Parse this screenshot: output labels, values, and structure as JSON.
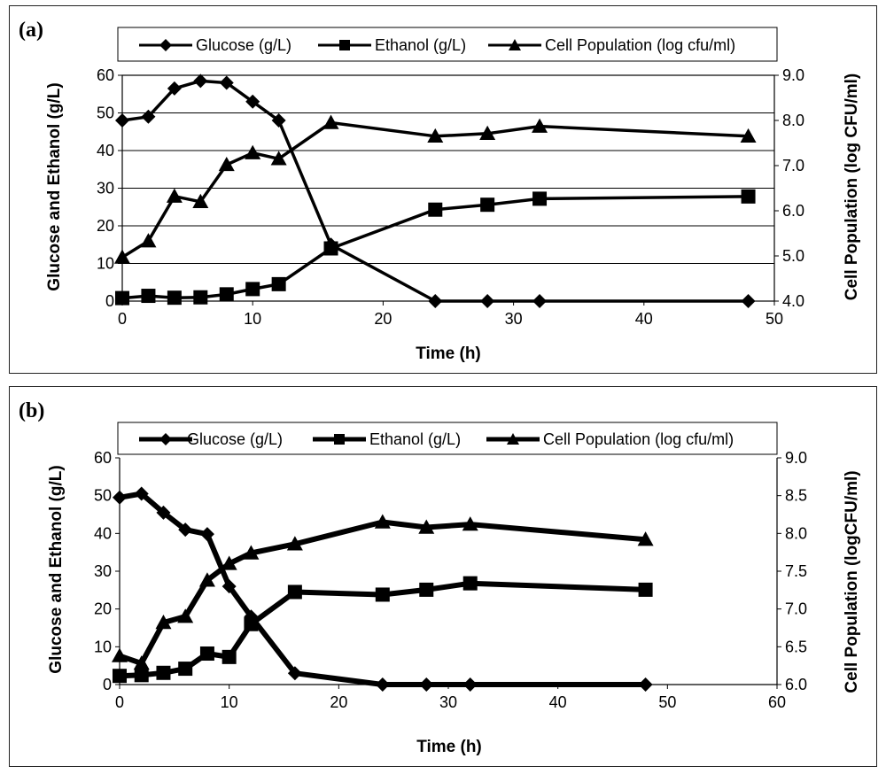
{
  "chart_data": [
    {
      "panel_label": "(a)",
      "type": "line",
      "legend": {
        "position": "top",
        "items": [
          "Glucose (g/L)",
          "Ethanol (g/L)",
          "Cell Population (log cfu/ml)"
        ]
      },
      "xlabel": "Time (h)",
      "ylabel_left": "Glucose and Ethanol (g/L)",
      "ylabel_right": "Cell Population (log CFU/ml)",
      "xlim": [
        0,
        50
      ],
      "x_ticks": [
        0,
        10,
        20,
        30,
        40,
        50
      ],
      "x_tick_labels": [
        "0",
        "10",
        "20",
        "30",
        "40",
        "50"
      ],
      "ylim_left": [
        0,
        60
      ],
      "y_left_ticks": [
        0,
        10,
        20,
        30,
        40,
        50,
        60
      ],
      "y_left_tick_labels": [
        "0",
        "10",
        "20",
        "30",
        "40",
        "50",
        "60"
      ],
      "ylim_right": [
        4,
        9
      ],
      "y_right_ticks": [
        4,
        5,
        6,
        7,
        8,
        9
      ],
      "y_right_tick_labels": [
        "4.0",
        "5.0",
        "6.0",
        "7.0",
        "8.0",
        "9.0"
      ],
      "grid": "horizontal",
      "series": [
        {
          "name": "Glucose (g/L)",
          "marker": "diamond",
          "axis": "left",
          "x": [
            0,
            2,
            4,
            6,
            8,
            10,
            12,
            16,
            24,
            28,
            32,
            48
          ],
          "values": [
            48,
            49,
            56.5,
            58.5,
            58,
            53,
            48,
            15,
            0,
            0,
            0,
            0
          ]
        },
        {
          "name": "Ethanol (g/L)",
          "marker": "square",
          "axis": "left",
          "x": [
            0,
            2,
            4,
            6,
            8,
            10,
            12,
            16,
            24,
            28,
            32,
            48
          ],
          "values": [
            0.8,
            1.4,
            0.9,
            1.0,
            1.8,
            3.2,
            4.5,
            14,
            24.3,
            25.6,
            27.2,
            27.8
          ]
        },
        {
          "name": "Cell Population (log cfu/ml)",
          "marker": "triangle",
          "axis": "right",
          "x": [
            0,
            2,
            4,
            6,
            8,
            10,
            12,
            16,
            24,
            28,
            32,
            48
          ],
          "values": [
            4.97,
            5.33,
            6.32,
            6.2,
            7.02,
            7.28,
            7.15,
            7.95,
            7.65,
            7.71,
            7.87,
            7.65
          ]
        }
      ]
    },
    {
      "panel_label": "(b)",
      "type": "line",
      "legend": {
        "position": "top",
        "items": [
          "Glucose (g/L)",
          "Ethanol (g/L)",
          "Cell Population (log cfu/ml)"
        ]
      },
      "xlabel": "Time (h)",
      "ylabel_left": "Glucose and Ethanol (g/L)",
      "ylabel_right": "Cell Population (logCFU/ml)",
      "xlim": [
        0,
        60
      ],
      "x_ticks": [
        0,
        10,
        20,
        30,
        40,
        50,
        60
      ],
      "x_tick_labels": [
        "0",
        "10",
        "20",
        "30",
        "40",
        "50",
        "60"
      ],
      "ylim_left": [
        0,
        60
      ],
      "y_left_ticks": [
        0,
        10,
        20,
        30,
        40,
        50,
        60
      ],
      "y_left_tick_labels": [
        "0",
        "10",
        "20",
        "30",
        "40",
        "50",
        "60"
      ],
      "ylim_right": [
        6,
        9
      ],
      "y_right_ticks": [
        6,
        6.5,
        7,
        7.5,
        8,
        8.5,
        9
      ],
      "y_right_tick_labels": [
        "6.0",
        "6.5",
        "7.0",
        "7.5",
        "8.0",
        "8.5",
        "9.0"
      ],
      "grid": "none",
      "series": [
        {
          "name": "Glucose (g/L)",
          "marker": "diamond",
          "axis": "left",
          "x": [
            0,
            2,
            4,
            6,
            8,
            10,
            12,
            16,
            24,
            28,
            32,
            48
          ],
          "values": [
            49.5,
            50.5,
            45.5,
            41,
            39.8,
            26,
            18,
            3,
            0,
            0,
            0,
            0
          ]
        },
        {
          "name": "Ethanol (g/L)",
          "marker": "square",
          "axis": "left",
          "x": [
            0,
            2,
            4,
            6,
            8,
            10,
            12,
            16,
            24,
            28,
            32,
            48
          ],
          "values": [
            2.3,
            2.5,
            3.1,
            4.2,
            8.2,
            7.3,
            16,
            24.5,
            23.8,
            25.1,
            26.8,
            25.1
          ]
        },
        {
          "name": "Cell Population (log cfu/ml)",
          "marker": "triangle",
          "axis": "right",
          "x": [
            0,
            2,
            4,
            6,
            8,
            10,
            12,
            16,
            24,
            28,
            32,
            48
          ],
          "values": [
            6.38,
            6.28,
            6.82,
            6.9,
            7.38,
            7.6,
            7.74,
            7.86,
            8.15,
            8.08,
            8.12,
            7.92
          ]
        }
      ]
    }
  ]
}
